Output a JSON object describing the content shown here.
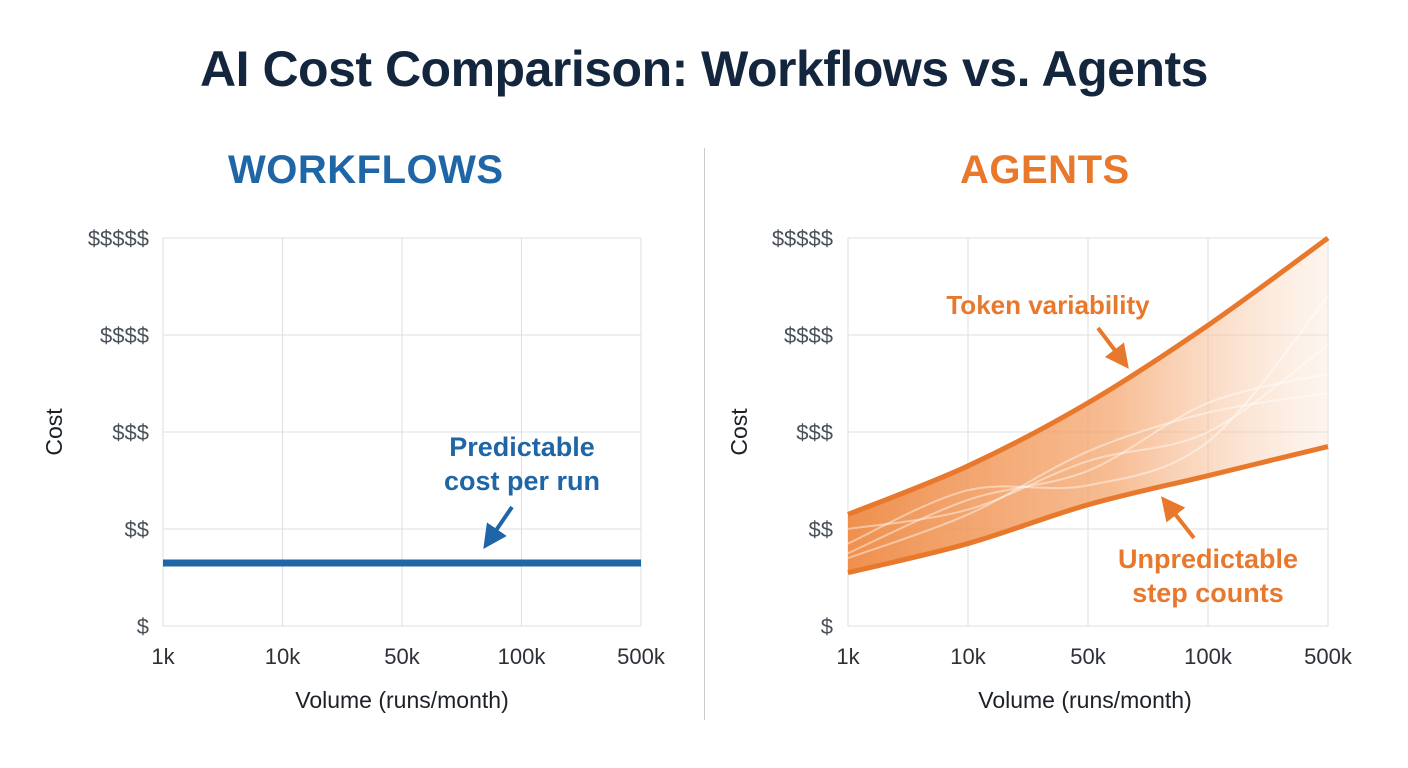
{
  "title": "AI Cost Comparison: Workflows vs. Agents",
  "colors": {
    "title": "#14263d",
    "workflow": "#1f66a6",
    "agent": "#e8782c",
    "grid": "#dcdfe3",
    "axis_text": "#4a5058"
  },
  "chart_data": [
    {
      "type": "line",
      "panel_title": "WORKFLOWS",
      "xlabel": "Volume (runs/month)",
      "ylabel": "Cost",
      "categories": [
        "1k",
        "10k",
        "50k",
        "100k",
        "500k"
      ],
      "y_ticks": [
        "$",
        "$$",
        "$$$",
        "$$$$",
        "$$$$$"
      ],
      "ylim": [
        1,
        5
      ],
      "grid": true,
      "series": [
        {
          "values": [
            1.65,
            1.65,
            1.65,
            1.65,
            1.65
          ]
        }
      ],
      "annotations": [
        {
          "text_lines": [
            "Predictable",
            "cost per run"
          ],
          "points_to": {
            "x": 2.7,
            "y": 1.8
          }
        }
      ]
    },
    {
      "type": "area",
      "panel_title": "AGENTS",
      "xlabel": "Volume (runs/month)",
      "ylabel": "Cost",
      "categories": [
        "1k",
        "10k",
        "50k",
        "100k",
        "500k"
      ],
      "y_ticks": [
        "$",
        "$$",
        "$$$",
        "$$$$",
        "$$$$$"
      ],
      "ylim": [
        1,
        5
      ],
      "grid": true,
      "series": [
        {
          "values": [
            2.15,
            2.65,
            3.3,
            4.1,
            5.0
          ]
        },
        {
          "values": [
            1.55,
            1.85,
            2.25,
            2.55,
            2.85
          ]
        }
      ],
      "annotations": [
        {
          "text_lines": [
            "Token variability"
          ],
          "points_to": {
            "x": 2.4,
            "y": 3.6
          }
        },
        {
          "text_lines": [
            "Unpredictable",
            "step counts"
          ],
          "points_to": {
            "x": 3.2,
            "y": 2.35
          }
        }
      ]
    }
  ]
}
